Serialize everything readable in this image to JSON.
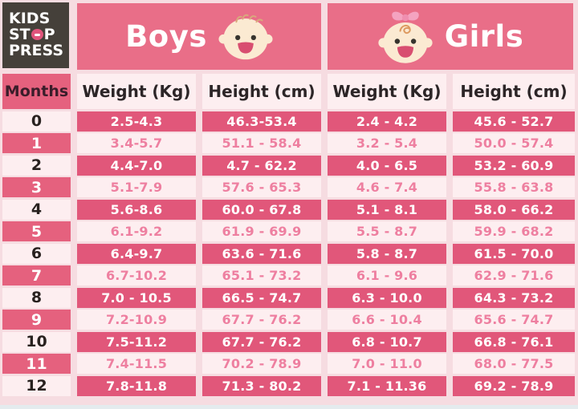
{
  "colors": {
    "page_bg": "#f6dce1",
    "light_cell": "#fdeef0",
    "bar_pink": "#e96e88",
    "cell_pink": "#e1577a",
    "months_pink": "#e5617e",
    "pink_text": "#ee7fa0",
    "dark_text": "#2c2527",
    "logo_bg": "#45403a"
  },
  "logo": {
    "line1": "KIDS",
    "stop_pre": "ST",
    "stop_post": "P",
    "line3": "PRESS"
  },
  "header": {
    "boys_label": "Boys",
    "girls_label": "Girls"
  },
  "columns": {
    "months": "Months",
    "boys_weight": "Weight (Kg)",
    "boys_height": "Height (cm)",
    "girls_weight": "Weight (Kg)",
    "girls_height": "Height (cm)"
  },
  "icons": {
    "boys": "baby-boy-face-icon",
    "girls": "baby-girl-face-icon"
  },
  "chart_data": {
    "type": "table",
    "title": "Baby growth chart 0-12 months: weight (kg) and height (cm) ranges for boys and girls",
    "categories": [
      "0",
      "1",
      "2",
      "3",
      "4",
      "5",
      "6",
      "7",
      "8",
      "9",
      "10",
      "11",
      "12"
    ],
    "series": [
      {
        "name": "Boys Weight (Kg)",
        "values": [
          "2.5-4.3",
          "3.4-5.7",
          "4.4-7.0",
          "5.1-7.9",
          "5.6-8.6",
          "6.1-9.2",
          "6.4-9.7",
          "6.7-10.2",
          "7.0 - 10.5",
          "7.2-10.9",
          "7.5-11.2",
          "7.4-11.5",
          "7.8-11.8"
        ]
      },
      {
        "name": "Boys Height (cm)",
        "values": [
          "46.3-53.4",
          "51.1 - 58.4",
          "4.7 - 62.2",
          "57.6 - 65.3",
          "60.0 - 67.8",
          "61.9 - 69.9",
          "63.6 - 71.6",
          "65.1 - 73.2",
          "66.5 - 74.7",
          "67.7 - 76.2",
          "67.7 - 76.2",
          "70.2 - 78.9",
          "71.3 - 80.2"
        ]
      },
      {
        "name": "Girls Weight (Kg)",
        "values": [
          "2.4 - 4.2",
          "3.2 - 5.4",
          "4.0 - 6.5",
          "4.6 - 7.4",
          "5.1 - 8.1",
          "5.5 - 8.7",
          "5.8 - 8.7",
          "6.1 - 9.6",
          "6.3 - 10.0",
          "6.6 - 10.4",
          "6.8 - 10.7",
          "7.0 - 11.0",
          "7.1 - 11.36"
        ]
      },
      {
        "name": "Girls Height (cm)",
        "values": [
          "45.6 - 52.7",
          "50.0 - 57.4",
          "53.2 - 60.9",
          "55.8 - 63.8",
          "58.0 - 66.2",
          "59.9 - 68.2",
          "61.5 - 70.0",
          "62.9 - 71.6",
          "64.3 - 73.2",
          "65.6 - 74.7",
          "66.8 - 76.1",
          "68.0 - 77.5",
          "69.2 - 78.9"
        ]
      }
    ]
  }
}
